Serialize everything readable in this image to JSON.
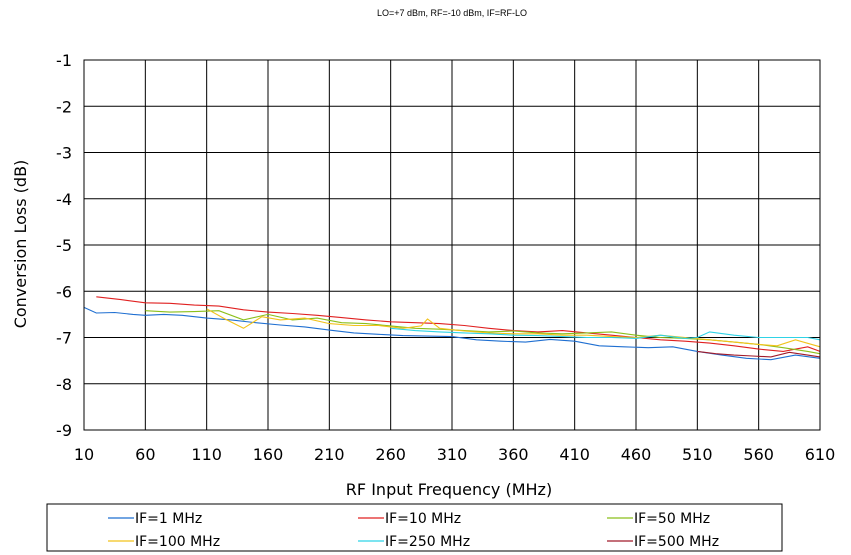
{
  "chart_data": {
    "type": "line",
    "title": "LO=+7 dBm, RF=-10 dBm, IF=RF-LO",
    "xlabel": "RF Input Frequency (MHz)",
    "ylabel": "Conversion Loss (dB)",
    "xlim": [
      10,
      610
    ],
    "ylim": [
      -9,
      -1
    ],
    "xticks": [
      "10",
      "60",
      "110",
      "160",
      "210",
      "260",
      "310",
      "360",
      "410",
      "460",
      "510",
      "560",
      "610"
    ],
    "yticks": [
      "-1",
      "-2",
      "-3",
      "-4",
      "-5",
      "-6",
      "-7",
      "-8",
      "-9"
    ],
    "grid": true,
    "legend_position": "bottom",
    "series": [
      {
        "name": "IF=1 MHz",
        "color": "#1f6fd1",
        "x": [
          10,
          20,
          35,
          50,
          60,
          75,
          90,
          110,
          130,
          150,
          170,
          190,
          210,
          230,
          250,
          270,
          290,
          310,
          330,
          350,
          370,
          390,
          410,
          430,
          450,
          470,
          490,
          510,
          530,
          550,
          570,
          590,
          610
        ],
        "y": [
          -6.35,
          -6.47,
          -6.46,
          -6.5,
          -6.52,
          -6.5,
          -6.52,
          -6.58,
          -6.62,
          -6.68,
          -6.73,
          -6.77,
          -6.84,
          -6.9,
          -6.93,
          -6.96,
          -6.97,
          -6.98,
          -7.05,
          -7.08,
          -7.1,
          -7.04,
          -7.08,
          -7.18,
          -7.2,
          -7.22,
          -7.2,
          -7.3,
          -7.38,
          -7.45,
          -7.48,
          -7.38,
          -7.45
        ]
      },
      {
        "name": "IF=10 MHz",
        "color": "#e02020",
        "x": [
          20,
          40,
          60,
          80,
          100,
          120,
          140,
          160,
          180,
          200,
          220,
          240,
          260,
          280,
          300,
          320,
          340,
          360,
          380,
          400,
          420,
          440,
          460,
          480,
          500,
          520,
          540,
          560,
          580,
          600,
          610
        ],
        "y": [
          -6.12,
          -6.18,
          -6.25,
          -6.26,
          -6.3,
          -6.32,
          -6.4,
          -6.45,
          -6.48,
          -6.52,
          -6.57,
          -6.62,
          -6.66,
          -6.68,
          -6.7,
          -6.74,
          -6.8,
          -6.85,
          -6.88,
          -6.85,
          -6.9,
          -6.95,
          -7.0,
          -7.05,
          -7.08,
          -7.12,
          -7.18,
          -7.25,
          -7.3,
          -7.2,
          -7.3
        ]
      },
      {
        "name": "IF=50 MHz",
        "color": "#8bbf1a",
        "x": [
          60,
          80,
          100,
          120,
          140,
          160,
          180,
          200,
          220,
          240,
          260,
          280,
          300,
          320,
          340,
          360,
          380,
          400,
          420,
          440,
          460,
          480,
          500,
          520,
          540,
          560,
          580,
          600,
          610
        ],
        "y": [
          -6.42,
          -6.45,
          -6.44,
          -6.42,
          -6.62,
          -6.5,
          -6.62,
          -6.58,
          -6.68,
          -6.7,
          -6.75,
          -6.8,
          -6.82,
          -6.85,
          -6.88,
          -6.86,
          -6.9,
          -6.92,
          -6.9,
          -6.88,
          -6.95,
          -7.0,
          -7.02,
          -7.05,
          -7.1,
          -7.15,
          -7.22,
          -7.3,
          -7.35
        ]
      },
      {
        "name": "IF=100 MHz",
        "color": "#f2c21a",
        "x": [
          110,
          125,
          140,
          155,
          170,
          190,
          210,
          230,
          250,
          270,
          285,
          290,
          300,
          320,
          340,
          360,
          380,
          400,
          420,
          440,
          460,
          480,
          500,
          520,
          540,
          560,
          575,
          590,
          610
        ],
        "y": [
          -6.38,
          -6.6,
          -6.8,
          -6.55,
          -6.62,
          -6.58,
          -6.7,
          -6.74,
          -6.74,
          -6.8,
          -6.75,
          -6.6,
          -6.8,
          -6.86,
          -6.9,
          -6.92,
          -6.92,
          -6.95,
          -6.95,
          -6.98,
          -7.0,
          -6.95,
          -7.0,
          -7.05,
          -7.1,
          -7.15,
          -7.18,
          -7.05,
          -7.2
        ]
      },
      {
        "name": "IF=250 MHz",
        "color": "#2fd3e6",
        "x": [
          260,
          280,
          300,
          320,
          340,
          360,
          380,
          400,
          420,
          440,
          460,
          480,
          500,
          510,
          520,
          540,
          560,
          580,
          600,
          610
        ],
        "y": [
          -6.8,
          -6.85,
          -6.88,
          -6.9,
          -6.92,
          -6.95,
          -6.96,
          -6.98,
          -7.0,
          -7.0,
          -7.02,
          -6.95,
          -7.02,
          -7.0,
          -6.88,
          -6.95,
          -7.0,
          -7.0,
          -7.0,
          -7.05
        ]
      },
      {
        "name": "IF=500 MHz",
        "color": "#a01a2a",
        "x": [
          510,
          525,
          540,
          555,
          570,
          585,
          600,
          610
        ],
        "y": [
          -7.3,
          -7.35,
          -7.38,
          -7.4,
          -7.42,
          -7.32,
          -7.38,
          -7.42
        ]
      }
    ]
  }
}
